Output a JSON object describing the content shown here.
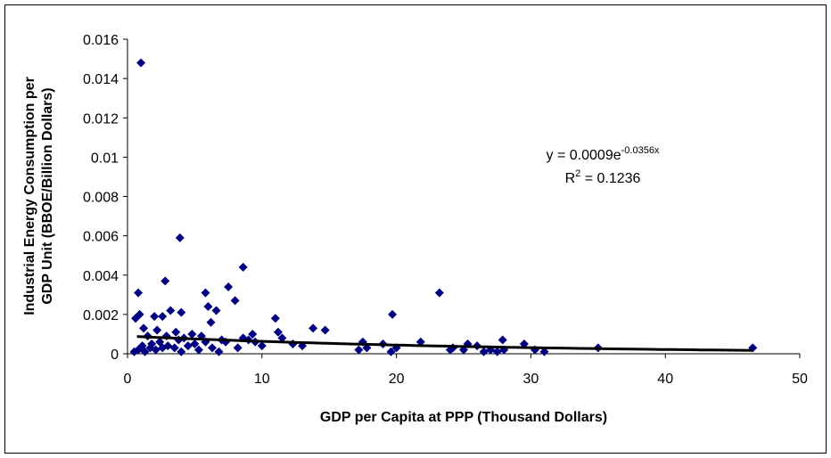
{
  "chart_data": {
    "type": "scatter",
    "x_label": "GDP per Capita at PPP (Thousand Dollars)",
    "y_label": [
      "Industrial Energy Consumption per",
      "GDP Unit (BBOE/Billion Dollars)"
    ],
    "xlim": [
      0,
      50
    ],
    "xticks": [
      0,
      10,
      20,
      30,
      40,
      50
    ],
    "ylim": [
      0,
      0.016
    ],
    "yticks": [
      0,
      0.002,
      0.004,
      0.006,
      0.008,
      0.01,
      0.012,
      0.014,
      0.016
    ],
    "color": "#000080",
    "x": [
      1.0,
      3.9,
      8.6,
      2.8,
      7.5,
      23.2,
      0.8,
      5.8,
      8.0,
      6.0,
      6.6,
      3.2,
      4.0,
      19.7,
      0.9,
      2.6,
      2.0,
      0.6,
      11.0,
      6.2,
      1.2,
      2.2,
      13.8,
      14.7,
      3.6,
      4.8,
      9.3,
      11.2,
      5.5,
      8.6,
      11.5,
      1.5,
      2.9,
      4.2,
      7.0,
      9.0,
      12.3,
      17.5,
      21.8,
      27.9,
      29.5,
      19.0,
      25.3,
      26.0,
      24.2,
      1.8,
      2.4,
      3.0,
      3.5,
      4.5,
      5.0,
      5.3,
      6.3,
      7.3,
      8.2,
      10.0,
      0.5,
      0.8,
      1.3,
      1.7,
      2.1,
      4.0,
      6.8,
      17.2,
      17.8,
      19.6,
      24.0,
      25.0,
      26.5,
      27.0,
      27.5,
      28.0,
      30.3,
      31.0,
      35.0,
      46.5,
      20.0,
      13.0,
      9.5,
      3.8,
      5.8,
      2.6,
      1.1
    ],
    "y": [
      0.0148,
      0.0059,
      0.0044,
      0.0037,
      0.0034,
      0.0031,
      0.0031,
      0.0031,
      0.0027,
      0.0024,
      0.0022,
      0.0022,
      0.0021,
      0.002,
      0.002,
      0.0019,
      0.0019,
      0.0018,
      0.0018,
      0.0016,
      0.0013,
      0.0012,
      0.0013,
      0.0012,
      0.0011,
      0.001,
      0.001,
      0.0011,
      0.0009,
      0.0008,
      0.0008,
      0.0009,
      0.0009,
      0.0008,
      0.0007,
      0.0007,
      0.0005,
      0.0006,
      0.0006,
      0.0007,
      0.0005,
      0.0005,
      0.0005,
      0.0004,
      0.0003,
      0.0005,
      0.0006,
      0.0004,
      0.0003,
      0.0004,
      0.0005,
      0.0002,
      0.0003,
      0.0006,
      0.0003,
      0.0004,
      0.0001,
      0.0002,
      0.0001,
      0.0003,
      0.0002,
      0.0001,
      0.0001,
      0.0002,
      0.0003,
      0.0001,
      0.0002,
      0.0002,
      0.0001,
      0.0002,
      0.0001,
      0.0002,
      0.0002,
      0.0001,
      0.0003,
      0.0003,
      0.0003,
      0.0004,
      0.0006,
      0.0007,
      0.0006,
      0.0003,
      0.0004
    ],
    "trendline": {
      "a": 0.0009,
      "b": -0.0356,
      "x_range": [
        0.7,
        46.5
      ],
      "color": "#000000"
    },
    "annotation": {
      "line1": {
        "text": "y = 0.0009e",
        "sup": "-0.0356x"
      },
      "line2": {
        "text": "R",
        "sup": "2",
        "rest": " = 0.1236"
      }
    }
  }
}
